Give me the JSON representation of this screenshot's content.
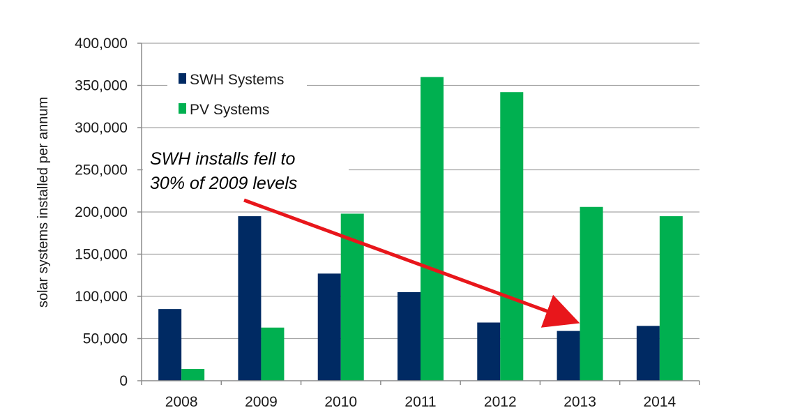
{
  "chart_data": {
    "type": "bar",
    "title": "",
    "xlabel": "",
    "ylabel": "solar systems installed per annum",
    "categories": [
      "2008",
      "2009",
      "2010",
      "2011",
      "2012",
      "2013",
      "2014"
    ],
    "series": [
      {
        "name": "SWH Systems",
        "color": "#002a63",
        "values": [
          85000,
          195000,
          127000,
          105000,
          69000,
          59000,
          65000
        ]
      },
      {
        "name": "PV Systems",
        "color": "#00b050",
        "values": [
          14000,
          63000,
          198000,
          360000,
          342000,
          206000,
          195000
        ]
      }
    ],
    "ylim": [
      0,
      400000
    ],
    "yticks": [
      0,
      50000,
      100000,
      150000,
      200000,
      250000,
      300000,
      350000,
      400000
    ],
    "ytick_labels": [
      "0",
      "50,000",
      "100,000",
      "150,000",
      "200,000",
      "250,000",
      "300,000",
      "350,000",
      "400,000"
    ],
    "grid": true,
    "legend_position": "top-left",
    "annotation": {
      "lines": [
        "SWH installs fell to",
        "30% of 2009 levels"
      ],
      "arrow_from_category": "2009",
      "arrow_to_category": "2013",
      "arrow_color": "#e8161b"
    }
  }
}
